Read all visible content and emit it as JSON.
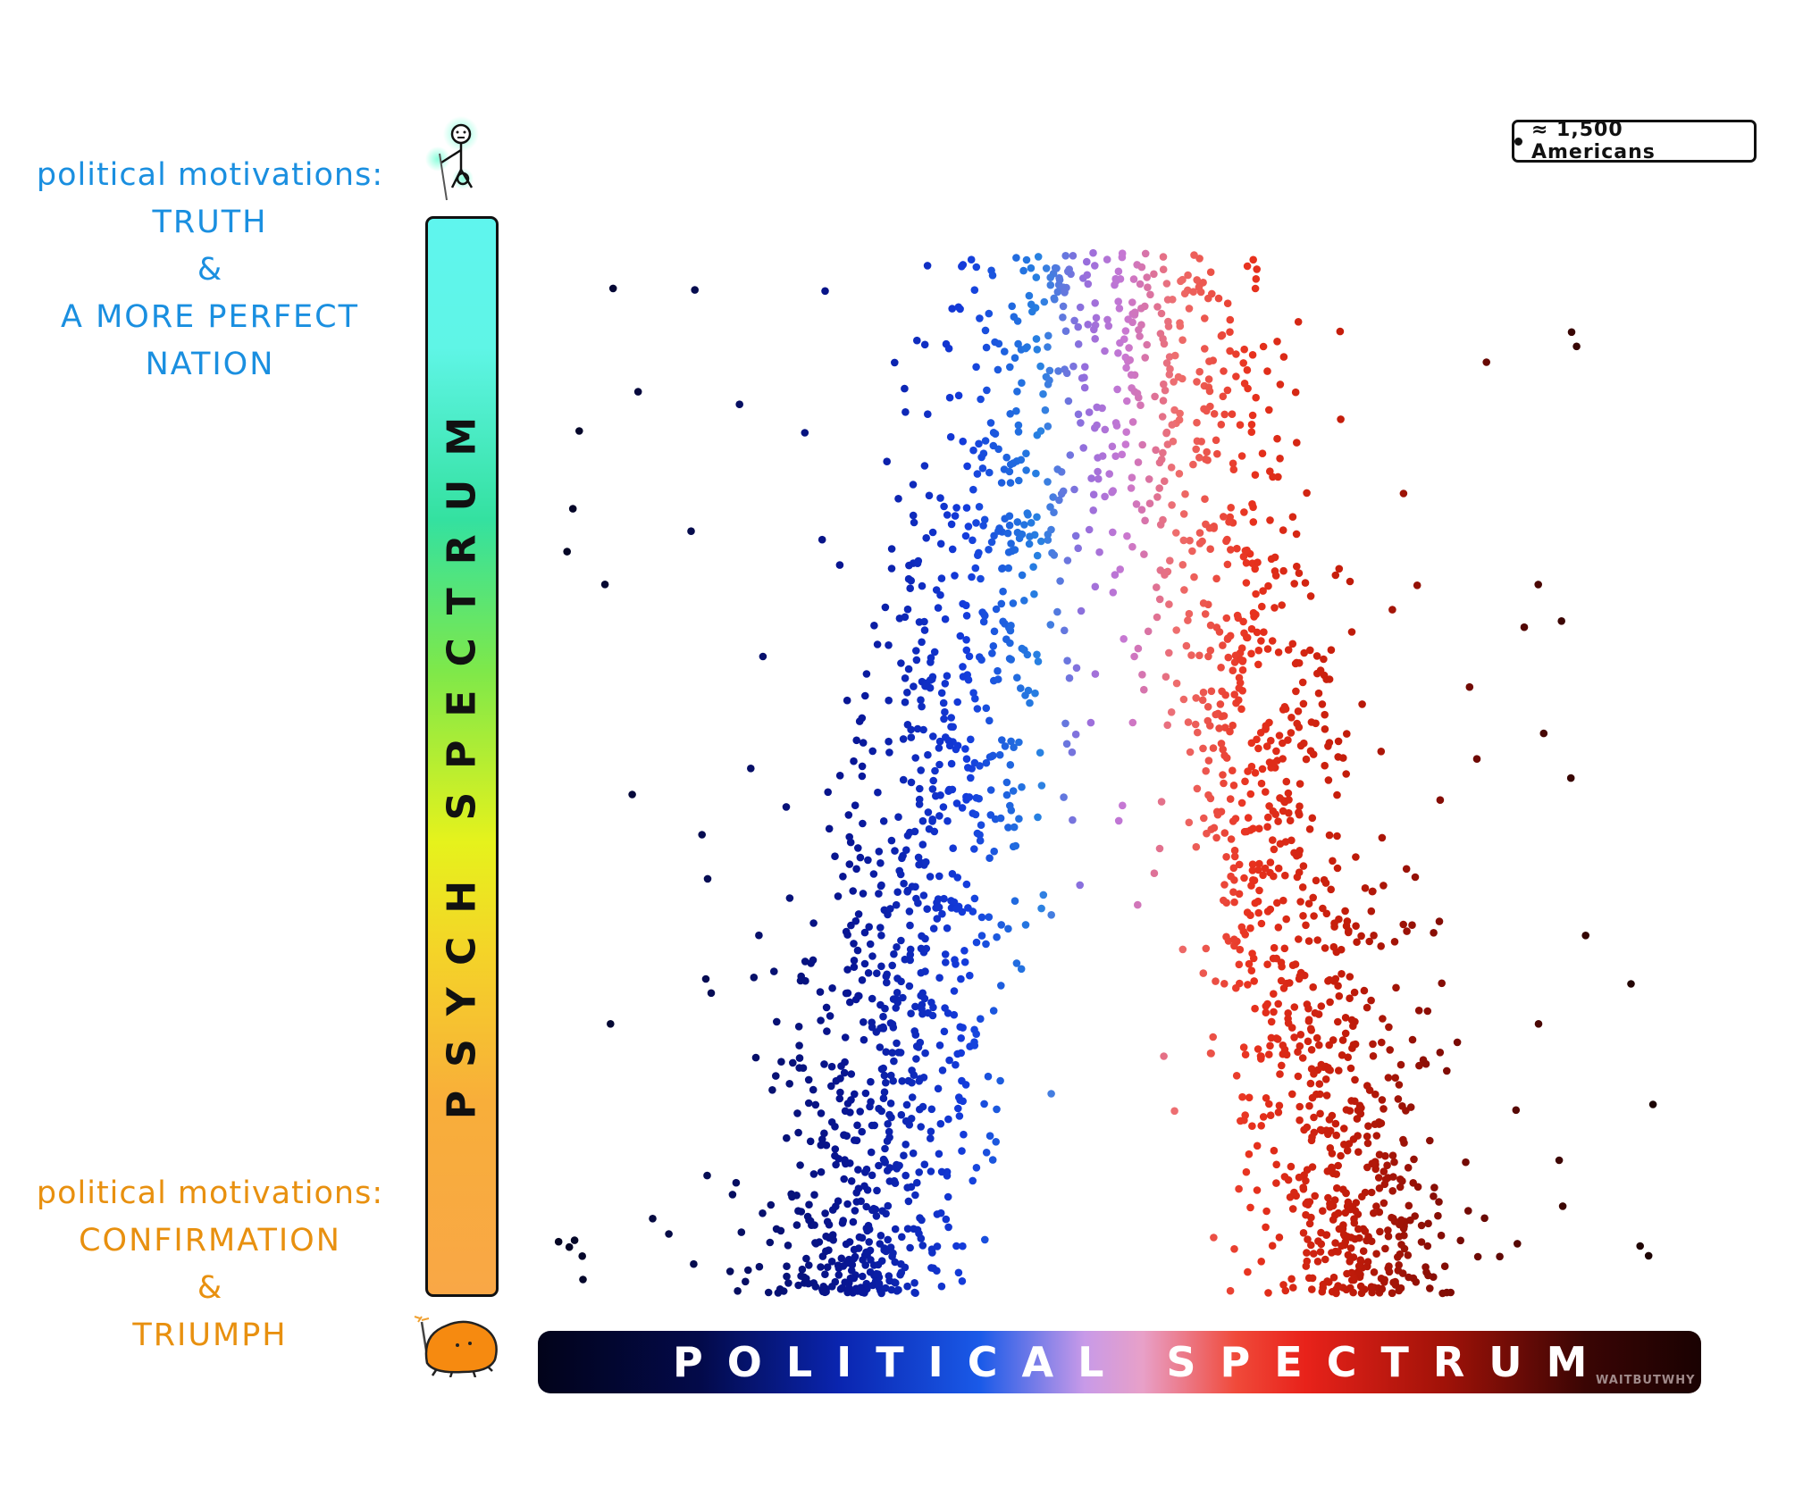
{
  "top_motivation": {
    "heading": "political motivations:",
    "line1": "TRUTH",
    "line2": "&",
    "line3": "A MORE PERFECT",
    "line4": "NATION"
  },
  "bottom_motivation": {
    "heading": "political motivations:",
    "line1": "CONFIRMATION",
    "line2": "&",
    "line3": "TRIUMPH"
  },
  "y_axis_label": "PSYCH SPECTRUM",
  "x_axis_label": "POLITICAL SPECTRUM",
  "legend": "≈ 1,500 Americans",
  "watermark": "WAITBUTWHY",
  "colors": {
    "truth": "#1a8fe0",
    "triumph": "#e8900f",
    "left_dots": "#0a1a9e",
    "center_dots": "#b57ad8",
    "right_dots": "#d8220e"
  },
  "chart_data": {
    "type": "scatter",
    "title": "",
    "xlabel": "POLITICAL SPECTRUM",
    "ylabel": "PSYCH SPECTRUM",
    "xlim": [
      -1,
      1
    ],
    "ylim": [
      0,
      1
    ],
    "grid": false,
    "legend": "top-right",
    "dot_unit": 1500,
    "series": [
      {
        "cluster": "left",
        "density_peaks": [
          {
            "x": -0.43,
            "y": 0.12
          },
          {
            "x": -0.38,
            "y": 0.45
          }
        ],
        "arm_top": {
          "x": -0.05,
          "y": 0.92
        },
        "approx_points": 1150
      },
      {
        "cluster": "right",
        "density_peaks": [
          {
            "x": 0.47,
            "y": 0.12
          },
          {
            "x": 0.4,
            "y": 0.45
          }
        ],
        "arm_top": {
          "x": 0.05,
          "y": 0.92
        },
        "approx_points": 1150
      }
    ]
  }
}
